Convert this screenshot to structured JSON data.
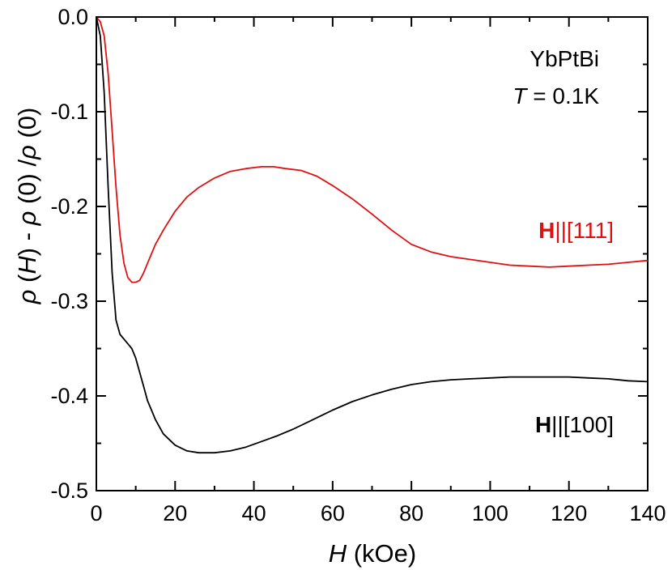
{
  "chart_data": {
    "type": "line",
    "xlabel_italic": "H",
    "xlabel_rest": " (kOe)",
    "ylabel": {
      "rho1": "ρ",
      "paren1": " (",
      "H": "H",
      "close1": ") - ",
      "rho2": "ρ",
      "zero1": " (0) /",
      "rho3": "ρ",
      "zero2": " (0)"
    },
    "xlim": [
      0,
      140
    ],
    "ylim": [
      -0.5,
      0.0
    ],
    "xticks": [
      0,
      20,
      40,
      60,
      80,
      100,
      120,
      140
    ],
    "xtick_labels": [
      "0",
      "20",
      "40",
      "60",
      "80",
      "100",
      "120",
      "140"
    ],
    "yticks": [
      0.0,
      -0.1,
      -0.2,
      -0.3,
      -0.4,
      -0.5
    ],
    "ytick_labels": [
      "0.0",
      "-0.1",
      "-0.2",
      "-0.3",
      "-0.4",
      "-0.5"
    ],
    "annotations": {
      "compound": "YbPtBi",
      "temp_var": "T",
      "temp_rest": " = 0.1K"
    },
    "series": [
      {
        "name_bold": "H",
        "name_rest": "||[111]",
        "color": "#e01010",
        "x": [
          0,
          1,
          2,
          3,
          4,
          5,
          6,
          7,
          8,
          9,
          10,
          11,
          12,
          13,
          14,
          15,
          17,
          20,
          23,
          26,
          30,
          34,
          38,
          42,
          45,
          48,
          52,
          56,
          60,
          65,
          70,
          75,
          80,
          85,
          90,
          95,
          100,
          105,
          110,
          115,
          120,
          125,
          130,
          135,
          140
        ],
        "y": [
          0.0,
          -0.005,
          -0.02,
          -0.06,
          -0.12,
          -0.18,
          -0.23,
          -0.26,
          -0.275,
          -0.28,
          -0.28,
          -0.278,
          -0.27,
          -0.26,
          -0.25,
          -0.24,
          -0.225,
          -0.205,
          -0.19,
          -0.18,
          -0.17,
          -0.163,
          -0.16,
          -0.158,
          -0.158,
          -0.16,
          -0.162,
          -0.168,
          -0.178,
          -0.192,
          -0.208,
          -0.225,
          -0.24,
          -0.248,
          -0.253,
          -0.256,
          -0.259,
          -0.262,
          -0.263,
          -0.264,
          -0.263,
          -0.262,
          -0.261,
          -0.259,
          -0.257
        ]
      },
      {
        "name_bold": "H",
        "name_rest": "||[100]",
        "color": "#000000",
        "x": [
          0,
          1,
          2,
          3,
          4,
          5,
          6,
          7,
          8,
          9,
          10,
          11,
          12,
          13,
          14,
          15,
          17,
          20,
          23,
          26,
          30,
          34,
          38,
          42,
          46,
          50,
          55,
          60,
          65,
          70,
          75,
          80,
          85,
          90,
          95,
          100,
          105,
          110,
          115,
          120,
          125,
          130,
          135,
          140
        ],
        "y": [
          0.0,
          -0.02,
          -0.08,
          -0.18,
          -0.27,
          -0.32,
          -0.335,
          -0.34,
          -0.345,
          -0.35,
          -0.36,
          -0.375,
          -0.39,
          -0.405,
          -0.415,
          -0.425,
          -0.44,
          -0.452,
          -0.458,
          -0.46,
          -0.46,
          -0.458,
          -0.454,
          -0.448,
          -0.442,
          -0.435,
          -0.425,
          -0.415,
          -0.406,
          -0.399,
          -0.393,
          -0.388,
          -0.385,
          -0.383,
          -0.382,
          -0.381,
          -0.38,
          -0.38,
          -0.38,
          -0.38,
          -0.381,
          -0.382,
          -0.384,
          -0.385
        ]
      }
    ]
  }
}
